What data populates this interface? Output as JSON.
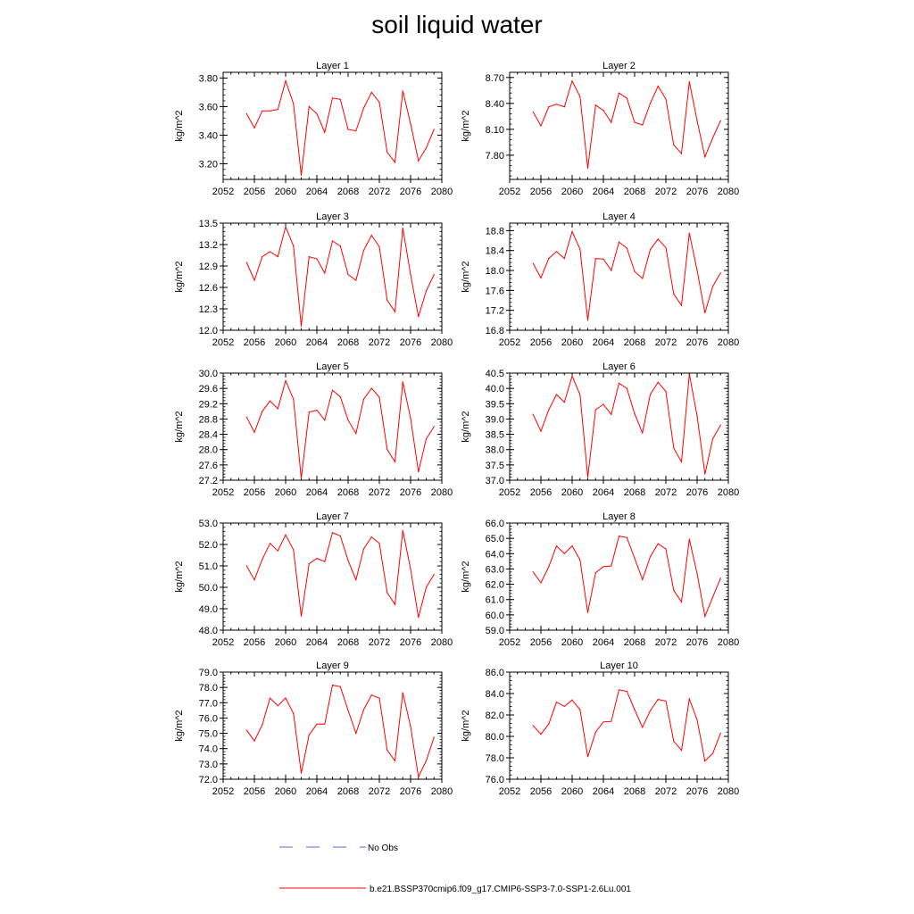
{
  "title": "soil liquid water",
  "legend": {
    "entries": [
      {
        "label": "No Obs",
        "style": "dashed",
        "color": "#4f6fd4"
      },
      {
        "label": "b.e21.BSSP370cmip6.f09_g17.CMIP6-SSP3-7.0-SSP1-2.6Lu.001",
        "style": "solid",
        "color": "#ff0000"
      }
    ]
  },
  "chart_data": [
    {
      "type": "line",
      "title": "Layer 1",
      "ylabel": "kg/m^2",
      "xlim": [
        2052,
        2080
      ],
      "xticks": [
        "2052",
        "2056",
        "2060",
        "2064",
        "2068",
        "2072",
        "2076",
        "2080"
      ],
      "ylim": [
        3.09,
        3.84
      ],
      "yticks": [
        "3.20",
        "3.40",
        "3.60",
        "3.80"
      ],
      "x": [
        2055,
        2056,
        2057,
        2058,
        2059,
        2060,
        2061,
        2062,
        2063,
        2064,
        2065,
        2066,
        2067,
        2068,
        2069,
        2070,
        2071,
        2072,
        2073,
        2074,
        2075,
        2076,
        2077,
        2078,
        2079
      ],
      "series": [
        {
          "values": [
            3.55,
            3.45,
            3.57,
            3.57,
            3.58,
            3.78,
            3.62,
            3.12,
            3.6,
            3.55,
            3.42,
            3.66,
            3.65,
            3.44,
            3.43,
            3.59,
            3.7,
            3.63,
            3.28,
            3.21,
            3.71,
            3.48,
            3.22,
            3.31,
            3.44
          ],
          "color": "#ff0000"
        }
      ]
    },
    {
      "type": "line",
      "title": "Layer 2",
      "ylabel": "kg/m^2",
      "xlim": [
        2052,
        2080
      ],
      "xticks": [
        "2052",
        "2056",
        "2060",
        "2064",
        "2068",
        "2072",
        "2076",
        "2080"
      ],
      "ylim": [
        7.52,
        8.76
      ],
      "yticks": [
        "7.80",
        "8.10",
        "8.40",
        "8.70"
      ],
      "x": [
        2055,
        2056,
        2057,
        2058,
        2059,
        2060,
        2061,
        2062,
        2063,
        2064,
        2065,
        2066,
        2067,
        2068,
        2069,
        2070,
        2071,
        2072,
        2073,
        2074,
        2075,
        2076,
        2077,
        2078,
        2079
      ],
      "series": [
        {
          "values": [
            8.3,
            8.14,
            8.36,
            8.39,
            8.36,
            8.66,
            8.48,
            7.65,
            8.38,
            8.32,
            8.18,
            8.52,
            8.46,
            8.18,
            8.15,
            8.4,
            8.6,
            8.45,
            7.92,
            7.82,
            8.65,
            8.2,
            7.78,
            8.0,
            8.2
          ],
          "color": "#ff0000"
        }
      ]
    },
    {
      "type": "line",
      "title": "Layer 3",
      "ylabel": "kg/m^2",
      "xlim": [
        2052,
        2080
      ],
      "xticks": [
        "2052",
        "2056",
        "2060",
        "2064",
        "2068",
        "2072",
        "2076",
        "2080"
      ],
      "ylim": [
        12.0,
        13.5
      ],
      "yticks": [
        "12.0",
        "12.3",
        "12.6",
        "12.9",
        "13.2",
        "13.5"
      ],
      "x": [
        2055,
        2056,
        2057,
        2058,
        2059,
        2060,
        2061,
        2062,
        2063,
        2064,
        2065,
        2066,
        2067,
        2068,
        2069,
        2070,
        2071,
        2072,
        2073,
        2074,
        2075,
        2076,
        2077,
        2078,
        2079
      ],
      "series": [
        {
          "values": [
            12.95,
            12.7,
            13.03,
            13.1,
            13.03,
            13.45,
            13.18,
            12.06,
            13.03,
            13.0,
            12.8,
            13.25,
            13.18,
            12.78,
            12.7,
            13.12,
            13.33,
            13.17,
            12.42,
            12.26,
            13.43,
            12.78,
            12.19,
            12.55,
            12.78
          ],
          "color": "#ff0000"
        }
      ]
    },
    {
      "type": "line",
      "title": "Layer 4",
      "ylabel": "kg/m^2",
      "xlim": [
        2052,
        2080
      ],
      "xticks": [
        "2052",
        "2056",
        "2060",
        "2064",
        "2068",
        "2072",
        "2076",
        "2080"
      ],
      "ylim": [
        16.8,
        18.95
      ],
      "yticks": [
        "16.8",
        "17.2",
        "17.6",
        "18.0",
        "18.4",
        "18.8"
      ],
      "x": [
        2055,
        2056,
        2057,
        2058,
        2059,
        2060,
        2061,
        2062,
        2063,
        2064,
        2065,
        2066,
        2067,
        2068,
        2069,
        2070,
        2071,
        2072,
        2073,
        2074,
        2075,
        2076,
        2077,
        2078,
        2079
      ],
      "series": [
        {
          "values": [
            18.14,
            17.85,
            18.24,
            18.38,
            18.24,
            18.78,
            18.43,
            17.0,
            18.24,
            18.23,
            18.0,
            18.57,
            18.45,
            17.98,
            17.84,
            18.42,
            18.63,
            18.46,
            17.53,
            17.3,
            18.75,
            18.0,
            17.15,
            17.68,
            17.95
          ],
          "color": "#ff0000"
        }
      ]
    },
    {
      "type": "line",
      "title": "Layer 5",
      "ylabel": "kg/m^2",
      "xlim": [
        2052,
        2080
      ],
      "xticks": [
        "2052",
        "2056",
        "2060",
        "2064",
        "2068",
        "2072",
        "2076",
        "2080"
      ],
      "ylim": [
        27.2,
        30.0
      ],
      "yticks": [
        "27.2",
        "27.6",
        "28.0",
        "28.4",
        "28.8",
        "29.2",
        "29.6",
        "30.0"
      ],
      "x": [
        2055,
        2056,
        2057,
        2058,
        2059,
        2060,
        2061,
        2062,
        2063,
        2064,
        2065,
        2066,
        2067,
        2068,
        2069,
        2070,
        2071,
        2072,
        2073,
        2074,
        2075,
        2076,
        2077,
        2078,
        2079
      ],
      "series": [
        {
          "values": [
            28.85,
            28.45,
            29.0,
            29.27,
            29.07,
            29.8,
            29.32,
            27.25,
            28.98,
            29.03,
            28.77,
            29.55,
            29.38,
            28.77,
            28.42,
            29.32,
            29.6,
            29.37,
            28.0,
            27.68,
            29.77,
            28.82,
            27.42,
            28.28,
            28.6
          ],
          "color": "#ff0000"
        }
      ]
    },
    {
      "type": "line",
      "title": "Layer 6",
      "ylabel": "kg/m^2",
      "xlim": [
        2052,
        2080
      ],
      "xticks": [
        "2052",
        "2056",
        "2060",
        "2064",
        "2068",
        "2072",
        "2076",
        "2080"
      ],
      "ylim": [
        37.0,
        40.5
      ],
      "yticks": [
        "37.0",
        "37.5",
        "38.0",
        "38.5",
        "39.0",
        "39.5",
        "40.0",
        "40.5"
      ],
      "x": [
        2055,
        2056,
        2057,
        2058,
        2059,
        2060,
        2061,
        2062,
        2063,
        2064,
        2065,
        2066,
        2067,
        2068,
        2069,
        2070,
        2071,
        2072,
        2073,
        2074,
        2075,
        2076,
        2077,
        2078,
        2079
      ],
      "series": [
        {
          "values": [
            39.15,
            38.6,
            39.3,
            39.8,
            39.55,
            40.4,
            39.8,
            37.1,
            39.3,
            39.48,
            39.15,
            40.17,
            40.0,
            39.17,
            38.55,
            39.8,
            40.2,
            39.9,
            38.05,
            37.6,
            40.47,
            39.1,
            37.2,
            38.35,
            38.8
          ],
          "color": "#ff0000"
        }
      ]
    },
    {
      "type": "line",
      "title": "Layer 7",
      "ylabel": "kg/m^2",
      "xlim": [
        2052,
        2080
      ],
      "xticks": [
        "2052",
        "2056",
        "2060",
        "2064",
        "2068",
        "2072",
        "2076",
        "2080"
      ],
      "ylim": [
        48.0,
        53.0
      ],
      "yticks": [
        "48.0",
        "49.0",
        "50.0",
        "51.0",
        "52.0",
        "53.0"
      ],
      "x": [
        2055,
        2056,
        2057,
        2058,
        2059,
        2060,
        2061,
        2062,
        2063,
        2064,
        2065,
        2066,
        2067,
        2068,
        2069,
        2070,
        2071,
        2072,
        2073,
        2074,
        2075,
        2076,
        2077,
        2078,
        2079
      ],
      "series": [
        {
          "values": [
            51.0,
            50.35,
            51.3,
            52.05,
            51.7,
            52.45,
            51.75,
            48.65,
            51.1,
            51.35,
            51.2,
            52.55,
            52.4,
            51.25,
            50.35,
            51.8,
            52.35,
            52.05,
            49.75,
            49.2,
            52.65,
            50.85,
            48.6,
            50.0,
            50.6
          ],
          "color": "#ff0000"
        }
      ]
    },
    {
      "type": "line",
      "title": "Layer 8",
      "ylabel": "kg/m^2",
      "xlim": [
        2052,
        2080
      ],
      "xticks": [
        "2052",
        "2056",
        "2060",
        "2064",
        "2068",
        "2072",
        "2076",
        "2080"
      ],
      "ylim": [
        59.0,
        66.0
      ],
      "yticks": [
        "59.0",
        "60.0",
        "61.0",
        "62.0",
        "63.0",
        "64.0",
        "65.0",
        "66.0"
      ],
      "x": [
        2055,
        2056,
        2057,
        2058,
        2059,
        2060,
        2061,
        2062,
        2063,
        2064,
        2065,
        2066,
        2067,
        2068,
        2069,
        2070,
        2071,
        2072,
        2073,
        2074,
        2075,
        2076,
        2077,
        2078,
        2079
      ],
      "series": [
        {
          "values": [
            62.8,
            62.1,
            63.15,
            64.5,
            64.0,
            64.5,
            63.6,
            60.15,
            62.75,
            63.15,
            63.2,
            65.15,
            65.05,
            63.7,
            62.3,
            63.8,
            64.65,
            64.3,
            61.6,
            60.85,
            64.95,
            62.7,
            59.9,
            61.15,
            62.4
          ],
          "color": "#ff0000"
        }
      ]
    },
    {
      "type": "line",
      "title": "Layer 9",
      "ylabel": "kg/m^2",
      "xlim": [
        2052,
        2080
      ],
      "xticks": [
        "2052",
        "2056",
        "2060",
        "2064",
        "2068",
        "2072",
        "2076",
        "2080"
      ],
      "ylim": [
        72.0,
        79.0
      ],
      "yticks": [
        "72.0",
        "73.0",
        "74.0",
        "75.0",
        "76.0",
        "77.0",
        "78.0",
        "79.0"
      ],
      "x": [
        2055,
        2056,
        2057,
        2058,
        2059,
        2060,
        2061,
        2062,
        2063,
        2064,
        2065,
        2066,
        2067,
        2068,
        2069,
        2070,
        2071,
        2072,
        2073,
        2074,
        2075,
        2076,
        2077,
        2078,
        2079
      ],
      "series": [
        {
          "values": [
            75.2,
            74.5,
            75.55,
            77.3,
            76.8,
            77.3,
            76.3,
            72.4,
            74.9,
            75.6,
            75.6,
            78.15,
            78.05,
            76.5,
            75.0,
            76.55,
            77.5,
            77.3,
            73.9,
            73.2,
            77.65,
            75.45,
            72.15,
            73.2,
            74.75
          ],
          "color": "#ff0000"
        }
      ]
    },
    {
      "type": "line",
      "title": "Layer 10",
      "ylabel": "kg/m^2",
      "xlim": [
        2052,
        2080
      ],
      "xticks": [
        "2052",
        "2056",
        "2060",
        "2064",
        "2068",
        "2072",
        "2076",
        "2080"
      ],
      "ylim": [
        76.0,
        86.0
      ],
      "yticks": [
        "76.0",
        "78.0",
        "80.0",
        "82.0",
        "84.0",
        "86.0"
      ],
      "x": [
        2055,
        2056,
        2057,
        2058,
        2059,
        2060,
        2061,
        2062,
        2063,
        2064,
        2065,
        2066,
        2067,
        2068,
        2069,
        2070,
        2071,
        2072,
        2073,
        2074,
        2075,
        2076,
        2077,
        2078,
        2079
      ],
      "series": [
        {
          "values": [
            81.0,
            80.2,
            81.15,
            83.2,
            82.8,
            83.4,
            82.5,
            78.1,
            80.4,
            81.35,
            81.4,
            84.35,
            84.2,
            82.5,
            80.85,
            82.4,
            83.45,
            83.3,
            79.55,
            78.7,
            83.5,
            81.55,
            77.7,
            78.4,
            80.3
          ],
          "color": "#ff0000"
        }
      ]
    }
  ]
}
